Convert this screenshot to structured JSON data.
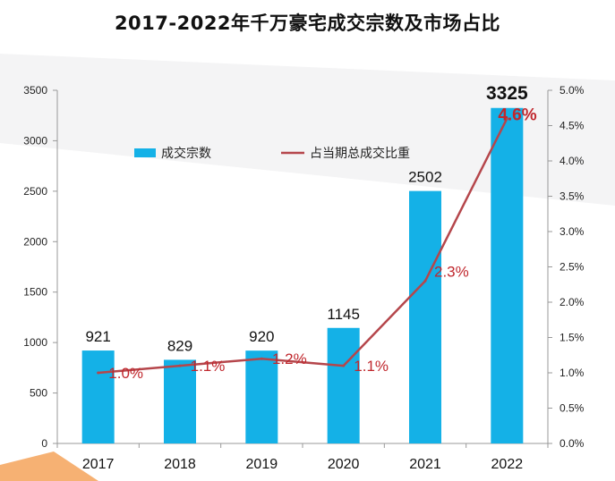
{
  "chart_data": {
    "type": "bar+line",
    "title": "2017-2022年千万豪宅成交宗数及市场占比",
    "categories": [
      "2017",
      "2018",
      "2019",
      "2020",
      "2021",
      "2022"
    ],
    "series": [
      {
        "name": "成交宗数",
        "type": "bar",
        "axis": "left",
        "values": [
          921,
          829,
          920,
          1145,
          2502,
          3325
        ],
        "labels": [
          "921",
          "829",
          "920",
          "1145",
          "2502",
          "3325"
        ]
      },
      {
        "name": "占当期总成交比重",
        "type": "line",
        "axis": "right",
        "values": [
          1.0,
          1.1,
          1.2,
          1.1,
          2.3,
          4.6
        ],
        "labels": [
          "1.0%",
          "1.1%",
          "1.2%",
          "1.1%",
          "2.3%",
          "4.6%"
        ]
      }
    ],
    "y_left": {
      "min": 0,
      "max": 3500,
      "step": 500,
      "ticks": [
        "0",
        "500",
        "1000",
        "1500",
        "2000",
        "2500",
        "3000",
        "3500"
      ]
    },
    "y_right": {
      "min": 0,
      "max": 5,
      "step": 0.5,
      "ticks": [
        "0.0%",
        "0.5%",
        "1.0%",
        "1.5%",
        "2.0%",
        "2.5%",
        "3.0%",
        "3.5%",
        "4.0%",
        "4.5%",
        "5.0%"
      ]
    },
    "grid": false,
    "legend_position": "top-left",
    "highlight_index": 5
  },
  "colors": {
    "bar": "#14b1e7",
    "line": "#b5464b",
    "pct_label": "#c0272d",
    "axis": "#999999"
  }
}
